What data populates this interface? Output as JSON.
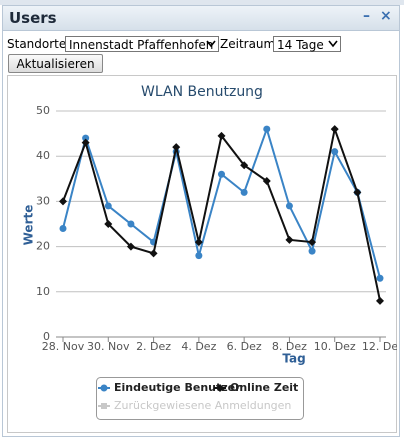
{
  "widget": {
    "title": "Users",
    "location_label": "Standorte",
    "location_value": "Innenstadt Pfaffenhofen",
    "period_label": "Zeitraum",
    "period_value": "14 Tage",
    "button": "Aktualisieren"
  },
  "chart_data": {
    "type": "line",
    "title": "WLAN Benutzung",
    "x_label": "Tag",
    "y_label": "Werte",
    "categories": [
      "28. Nov",
      null,
      "30. Nov",
      null,
      "2. Dez",
      null,
      "4. Dez",
      null,
      "6. Dez",
      null,
      "8. Dez",
      null,
      "10. Dez",
      null,
      "12. De"
    ],
    "series": [
      {
        "name": "Eindeutige Benutzer",
        "color": "#3a84c6",
        "marker": "circle",
        "values": [
          24,
          44,
          29,
          25,
          21,
          41,
          18,
          36,
          32,
          46,
          29,
          19,
          41,
          32,
          13
        ]
      },
      {
        "name": "Online Zeit",
        "color": "#111111",
        "marker": "diamond",
        "values": [
          30,
          43,
          25,
          20,
          18.5,
          42,
          21,
          44.5,
          38,
          34.5,
          21.5,
          21,
          46,
          32,
          8
        ]
      }
    ],
    "inactive_series": [
      {
        "name": "Zurückgewiesene Anmeldungen",
        "color": "#c8c8c8"
      }
    ],
    "ylim": [
      0,
      50
    ],
    "yticks": [
      0,
      10,
      20,
      30,
      40,
      50
    ],
    "grid": true,
    "legend": "bottom"
  }
}
